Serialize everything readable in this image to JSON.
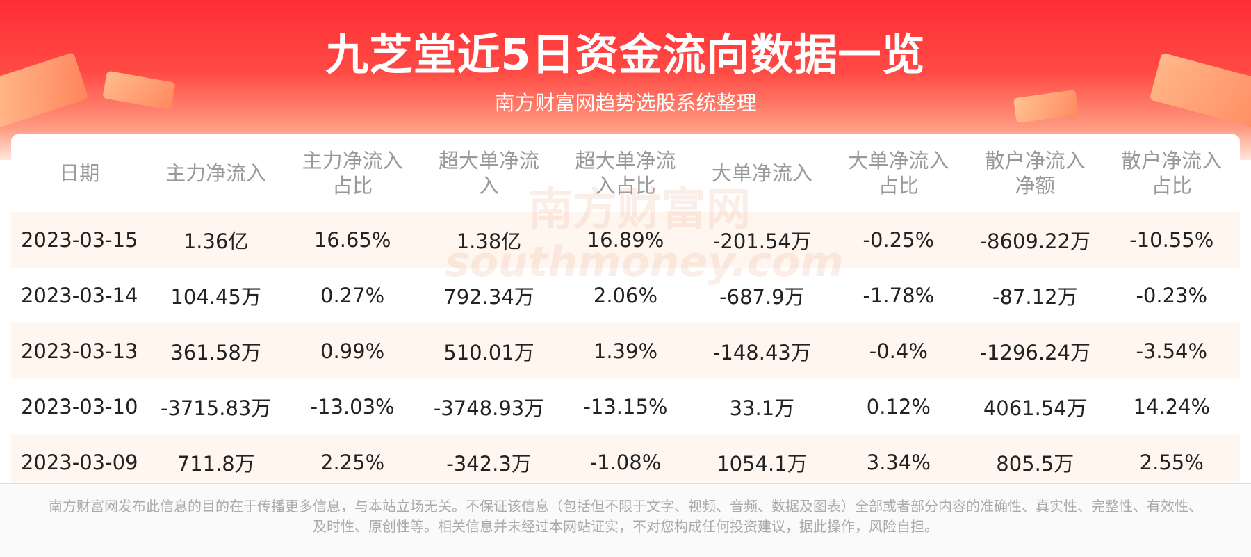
{
  "header": {
    "title": "九芝堂近5日资金流向数据一览",
    "subtitle": "南方财富网趋势选股系统整理"
  },
  "table": {
    "columns": [
      "日期",
      "主力净流入",
      "主力净流入占比",
      "超大单净流入",
      "超大单净流入占比",
      "大单净流入",
      "大单净流入占比",
      "散户净流入净额",
      "散户净流入占比"
    ],
    "rows": [
      [
        "2023-03-15",
        "1.36亿",
        "16.65%",
        "1.38亿",
        "16.89%",
        "-201.54万",
        "-0.25%",
        "-8609.22万",
        "-10.55%"
      ],
      [
        "2023-03-14",
        "104.45万",
        "0.27%",
        "792.34万",
        "2.06%",
        "-687.9万",
        "-1.78%",
        "-87.12万",
        "-0.23%"
      ],
      [
        "2023-03-13",
        "361.58万",
        "0.99%",
        "510.01万",
        "1.39%",
        "-148.43万",
        "-0.4%",
        "-1296.24万",
        "-3.54%"
      ],
      [
        "2023-03-10",
        "-3715.83万",
        "-13.03%",
        "-3748.93万",
        "-13.15%",
        "33.1万",
        "0.12%",
        "4061.54万",
        "14.24%"
      ],
      [
        "2023-03-09",
        "711.8万",
        "2.25%",
        "-342.3万",
        "-1.08%",
        "1054.1万",
        "3.34%",
        "805.5万",
        "2.55%"
      ]
    ]
  },
  "watermark": [
    "南方财富网",
    "southmoney.com"
  ],
  "footer": {
    "disclaimer": "南方财富网发布此信息的目的在于传播更多信息，与本站立场无关。不保证该信息（包括但不限于文字、视频、音频、数据及图表）全部或者部分内容的准确性、真实性、完整性、有效性、及时性、原创性等。相关信息并未经过本网站证实，不对您构成任何投资建议，据此操作，风险自担。"
  }
}
